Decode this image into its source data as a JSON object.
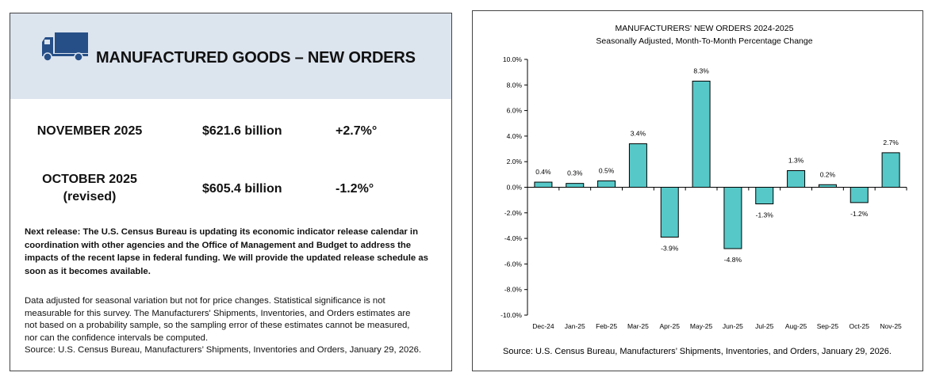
{
  "left": {
    "title": "MANUFACTURED GOODS – NEW ORDERS",
    "rows": [
      {
        "period": "NOVEMBER 2025",
        "sub": "",
        "value": "$621.6 billion",
        "change": "+2.7%°"
      },
      {
        "period": "OCTOBER 2025",
        "sub": "(revised)",
        "value": "$605.4 billion",
        "change": "-1.2%°"
      }
    ],
    "next_release": [
      "Next release: The U.S. Census Bureau is updating its economic indicator release calendar in",
      "coordination with other agencies and the Office of Management and Budget to address the",
      "impacts of the recent lapse in federal funding.  We will provide the updated release schedule as",
      "soon as it becomes available."
    ],
    "notes": [
      "Data adjusted for seasonal variation but not for price changes. Statistical significance is not",
      "measurable for this survey.  The Manufacturers' Shipments, Inventories, and Orders estimates are",
      "not based on a probability sample, so the sampling error of these estimates cannot be measured,",
      "nor can the confidence intervals be computed.",
      "Source: U.S. Census Bureau, Manufacturers’ Shipments, Inventories and Orders, January 29, 2026."
    ]
  },
  "chart_data": {
    "type": "bar",
    "title": "MANUFACTURERS' NEW ORDERS 2024-2025",
    "subtitle": "Seasonally Adjusted,  Month-To-Month Percentage Change",
    "categories": [
      "Dec-24",
      "Jan-25",
      "Feb-25",
      "Mar-25",
      "Apr-25",
      "May-25",
      "Jun-25",
      "Jul-25",
      "Aug-25",
      "Sep-25",
      "Oct-25",
      "Nov-25"
    ],
    "values": [
      0.4,
      0.3,
      0.5,
      3.4,
      -3.9,
      8.3,
      -4.8,
      -1.3,
      1.3,
      0.2,
      -1.2,
      2.7
    ],
    "data_labels": [
      "0.4%",
      "0.3%",
      "0.5%",
      "3.4%",
      "-3.9%",
      "8.3%",
      "-4.8%",
      "-1.3%",
      "1.3%",
      "0.2%",
      "-1.2%",
      "2.7%"
    ],
    "yticks": [
      10,
      8,
      6,
      4,
      2,
      0,
      -2,
      -4,
      -6,
      -8,
      -10
    ],
    "ytick_labels": [
      "10.0%",
      "8.0%",
      "6.0%",
      "4.0%",
      "2.0%",
      "0.0%",
      "-2.0%",
      "-4.0%",
      "-6.0%",
      "-8.0%",
      "-10.0%"
    ],
    "ylim": [
      -10,
      10
    ],
    "xlabel": "",
    "ylabel": "",
    "grid": false,
    "bar_color": "#56c8c8",
    "source": "Source: U.S. Census Bureau, Manufacturers’ Shipments, Inventories, and Orders, January 29, 2026."
  }
}
